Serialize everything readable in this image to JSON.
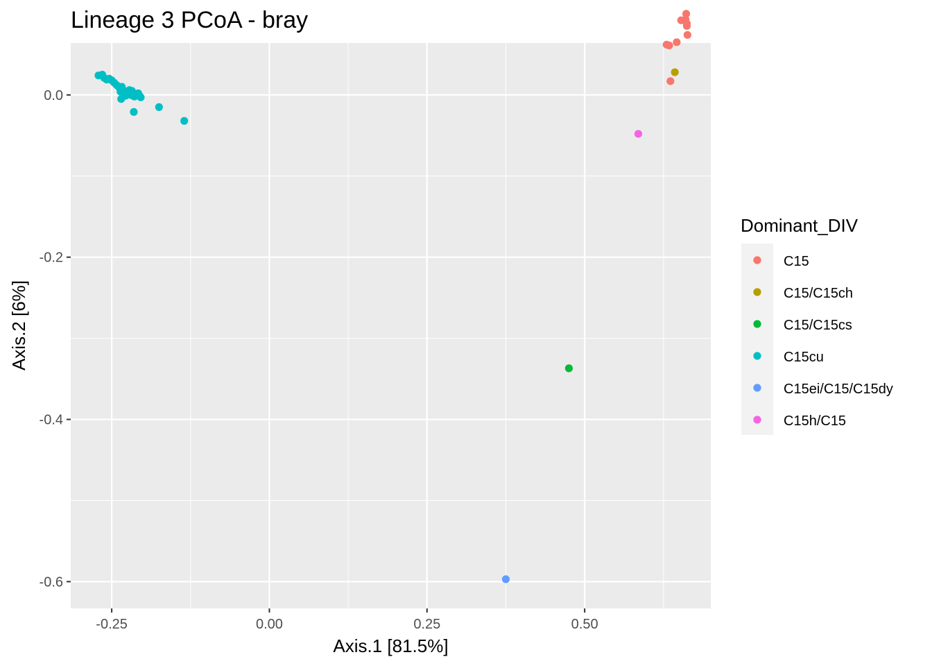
{
  "chart_data": {
    "type": "scatter",
    "title": "Lineage 3 PCoA - bray",
    "xlabel": "Axis.1   [81.5%]",
    "ylabel": "Axis.2   [6%]",
    "xlim": [
      -0.315,
      0.7
    ],
    "ylim": [
      -0.633,
      0.064
    ],
    "x_ticks": [
      -0.25,
      0.0,
      0.25,
      0.5
    ],
    "x_tick_labels": [
      "-0.25",
      "0.00",
      "0.25",
      "0.50"
    ],
    "y_ticks": [
      0.0,
      -0.2,
      -0.4,
      -0.6
    ],
    "y_tick_labels": [
      "0.0",
      "-0.2",
      "-0.4",
      "-0.6"
    ],
    "grid": true,
    "legend_position": "right",
    "legend_title": "Dominant_DIV",
    "series": [
      {
        "name": "C15",
        "color": "#F8766D",
        "points": [
          [
            0.653,
            0.092
          ],
          [
            0.66,
            0.093
          ],
          [
            0.661,
            0.1
          ],
          [
            0.662,
            0.088
          ],
          [
            0.662,
            0.085
          ],
          [
            0.646,
            0.065
          ],
          [
            0.63,
            0.062
          ],
          [
            0.634,
            0.061
          ],
          [
            0.663,
            0.074
          ],
          [
            0.636,
            0.017
          ]
        ]
      },
      {
        "name": "C15/C15ch",
        "color": "#B79F00",
        "points": [
          [
            0.643,
            0.028
          ]
        ]
      },
      {
        "name": "C15/C15cs",
        "color": "#00BA38",
        "points": [
          [
            0.475,
            -0.337
          ]
        ]
      },
      {
        "name": "C15cu",
        "color": "#00BFC4",
        "points": [
          [
            -0.271,
            0.024
          ],
          [
            -0.265,
            0.025
          ],
          [
            -0.262,
            0.021
          ],
          [
            -0.258,
            0.019
          ],
          [
            -0.254,
            0.02
          ],
          [
            -0.25,
            0.018
          ],
          [
            -0.246,
            0.015
          ],
          [
            -0.242,
            0.012
          ],
          [
            -0.238,
            0.009
          ],
          [
            -0.234,
            0.01
          ],
          [
            -0.232,
            0.006
          ],
          [
            -0.236,
            0.004
          ],
          [
            -0.23,
            0.003
          ],
          [
            -0.226,
            0.004
          ],
          [
            -0.222,
            0.006
          ],
          [
            -0.218,
            0.005
          ],
          [
            -0.224,
            0.001
          ],
          [
            -0.22,
            0.0
          ],
          [
            -0.216,
            -0.001
          ],
          [
            -0.212,
            0.0
          ],
          [
            -0.208,
            0.002
          ],
          [
            -0.206,
            -0.001
          ],
          [
            -0.204,
            -0.003
          ],
          [
            -0.214,
            -0.002
          ],
          [
            -0.228,
            -0.001
          ],
          [
            -0.235,
            -0.005
          ],
          [
            -0.215,
            -0.021
          ],
          [
            -0.175,
            -0.015
          ],
          [
            -0.135,
            -0.032
          ]
        ]
      },
      {
        "name": "C15ei/C15/C15dy",
        "color": "#619CFF",
        "points": [
          [
            0.375,
            -0.597
          ]
        ]
      },
      {
        "name": "C15h/C15",
        "color": "#F564E3",
        "points": [
          [
            0.585,
            -0.048
          ]
        ]
      }
    ]
  }
}
